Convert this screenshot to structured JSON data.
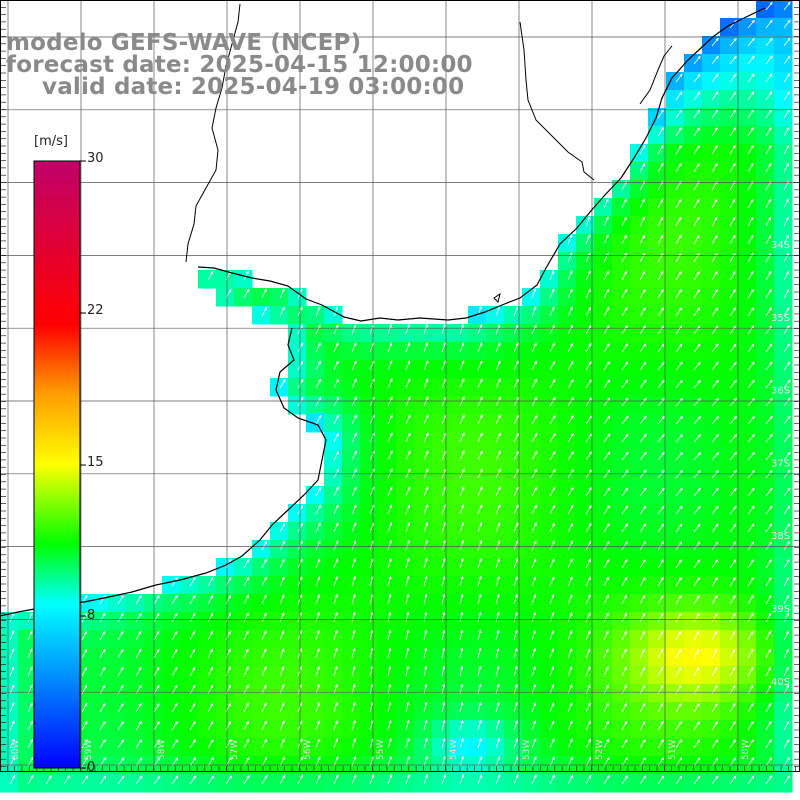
{
  "title": {
    "model": "modelo GEFS-WAVE (NCEP)",
    "forecast": "forecast date: 2025-04-15 12:00:00",
    "valid": "valid date: 2025-04-19 03:00:00"
  },
  "legend": {
    "unit": "[m/s]",
    "ticks": [
      "30",
      "22",
      "15",
      "8",
      "0"
    ],
    "range": [
      0,
      30
    ]
  },
  "map": {
    "lat_labels": [
      "34S",
      "35S",
      "36S",
      "37S",
      "38S",
      "39S",
      "40S"
    ],
    "lon_labels": [
      "60W",
      "59W",
      "58W",
      "57W",
      "56W",
      "55W",
      "54W",
      "53W",
      "52W",
      "51W",
      "50W"
    ],
    "field": "wind speed",
    "colors": {
      "land": "#ffffff",
      "grid": "#555555",
      "coast": "#000000",
      "arrow": "#ffffff",
      "title": "#8a8a8a"
    }
  }
}
